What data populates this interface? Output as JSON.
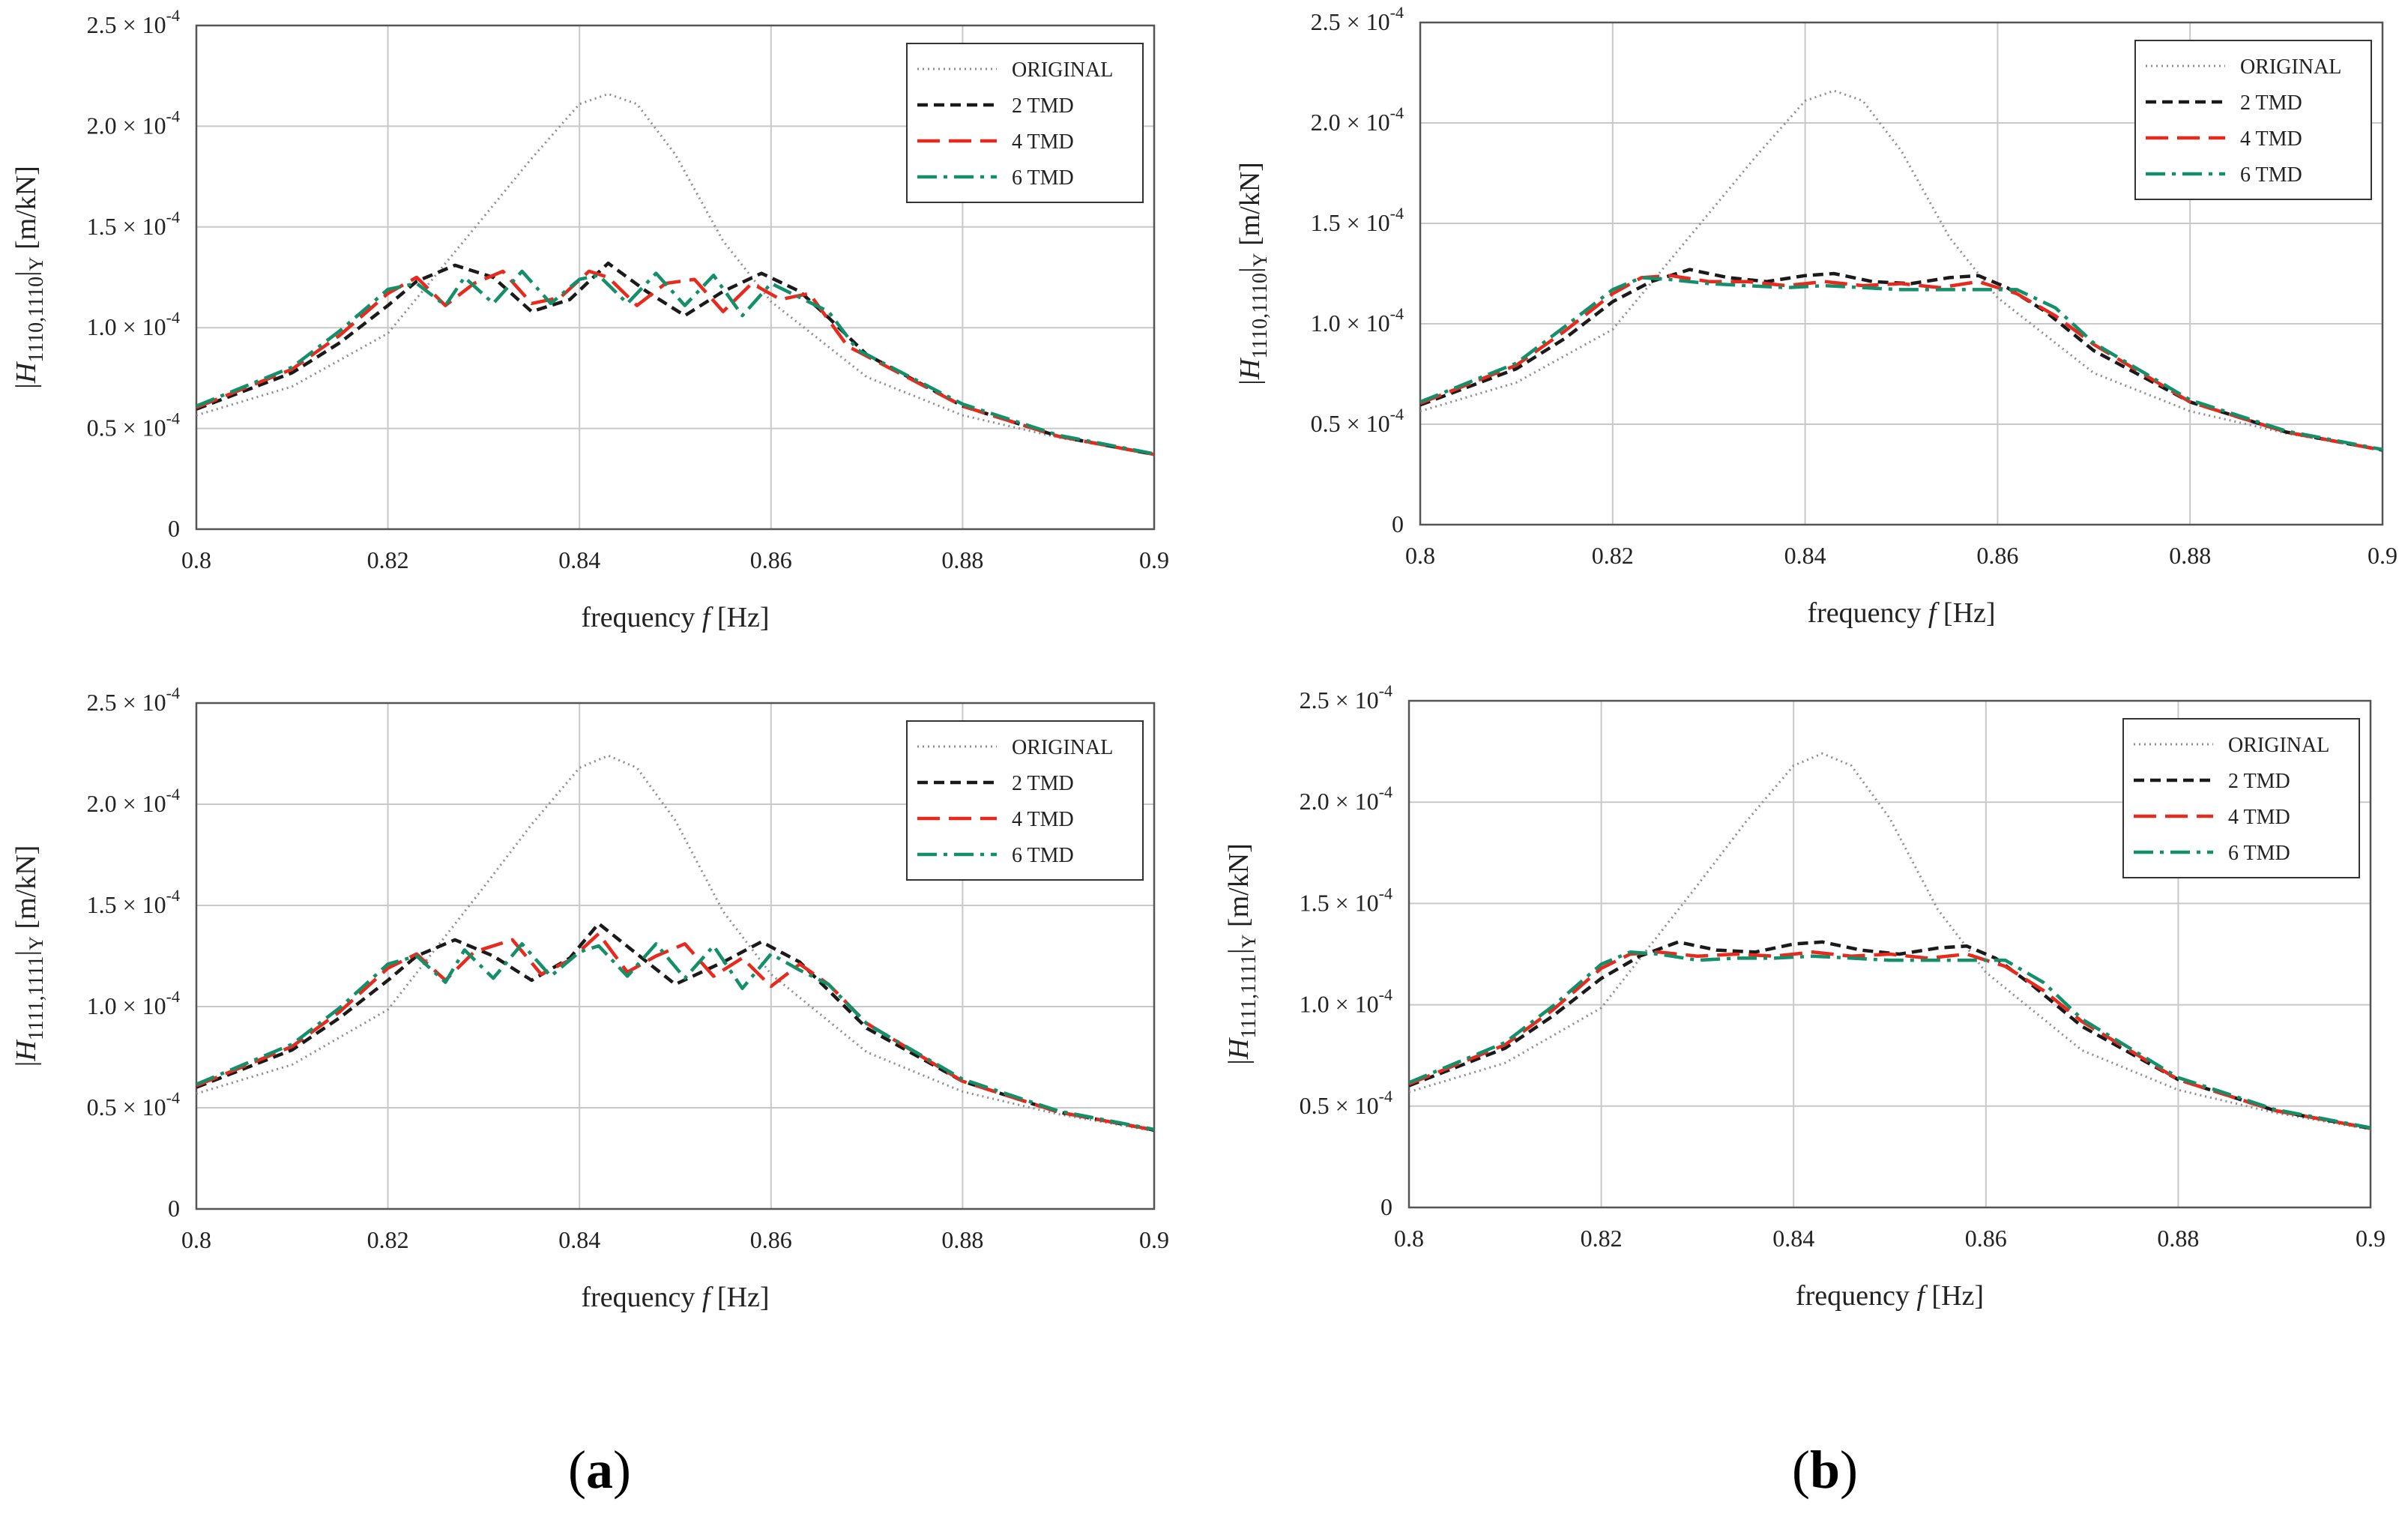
{
  "figure": {
    "label_a": "a",
    "label_b": "b"
  },
  "chart_data": [
    {
      "type": "line",
      "panel": "a-top",
      "xlabel": "frequency f [Hz]",
      "ylabel": "|H1110,1110|Y [m/kN]",
      "xlim": [
        0.8,
        0.9
      ],
      "ylim": [
        0,
        0.00025
      ],
      "x_ticks": [
        "0.8",
        "0.82",
        "0.84",
        "0.86",
        "0.88",
        "0.9"
      ],
      "y_ticks": [
        "0",
        "0.5 × 10-4",
        "1.0 × 10-4",
        "1.5 × 10-4",
        "2.0 × 10-4",
        "2.5 × 10-4"
      ],
      "grid": true,
      "legend": "top-right",
      "series": [
        {
          "name": "ORIGINAL",
          "color": "#8c8c8c",
          "style": "dotted",
          "x": [
            0.8,
            0.81,
            0.82,
            0.83,
            0.835,
            0.84,
            0.843,
            0.846,
            0.85,
            0.855,
            0.86,
            0.87,
            0.88,
            0.89,
            0.9
          ],
          "y": [
            5.65e-05,
            7.08e-05,
            9.72e-05,
            0.000155,
            0.000184,
            0.000211,
            0.000216,
            0.000211,
            0.000186,
            0.000143,
            0.000113,
            7.55e-05,
            5.65e-05,
            4.55e-05,
            3.7e-05
          ]
        },
        {
          "name": "2 TMD",
          "color": "#1a1a1a",
          "style": "dashed",
          "x": [
            0.8,
            0.81,
            0.815,
            0.82,
            0.823,
            0.827,
            0.831,
            0.835,
            0.839,
            0.843,
            0.847,
            0.851,
            0.855,
            0.859,
            0.863,
            0.866,
            0.87,
            0.88,
            0.89,
            0.9
          ],
          "y": [
            5.96e-05,
            7.76e-05,
            9.26e-05,
            0.000111,
            0.000123,
            0.000131,
            0.000125,
            0.000108,
            0.000114,
            0.000132,
            0.000118,
            0.000106,
            0.000118,
            0.000127,
            0.000118,
            0.000105,
            8.66e-05,
            6.11e-05,
            4.61e-05,
            3.71e-05
          ]
        },
        {
          "name": "4 TMD",
          "color": "#e82a1e",
          "style": "long-dashed",
          "x": [
            0.8,
            0.81,
            0.815,
            0.82,
            0.823,
            0.826,
            0.829,
            0.832,
            0.835,
            0.838,
            0.841,
            0.843,
            0.846,
            0.849,
            0.852,
            0.855,
            0.858,
            0.861,
            0.864,
            0.868,
            0.88,
            0.89,
            0.9
          ],
          "y": [
            6.04e-05,
            7.94e-05,
            9.63e-05,
            0.000117,
            0.000125,
            0.000111,
            0.000122,
            0.000128,
            0.000112,
            0.000115,
            0.000128,
            0.000125,
            0.000111,
            0.000122,
            0.000124,
            0.000108,
            0.000122,
            0.000114,
            0.000117,
            9.08e-05,
            6.11e-05,
            4.61e-05,
            3.71e-05
          ]
        },
        {
          "name": "6 TMD",
          "color": "#138f6a",
          "style": "dash-dot",
          "x": [
            0.8,
            0.81,
            0.815,
            0.82,
            0.823,
            0.826,
            0.828,
            0.831,
            0.834,
            0.837,
            0.84,
            0.842,
            0.845,
            0.848,
            0.851,
            0.854,
            0.857,
            0.86,
            0.863,
            0.866,
            0.869,
            0.88,
            0.89,
            0.9
          ],
          "y": [
            6.11e-05,
            8.04e-05,
            9.85e-05,
            0.000119,
            0.000122,
            0.000111,
            0.000125,
            0.000112,
            0.000128,
            0.000112,
            0.000124,
            0.000126,
            0.000112,
            0.000127,
            0.000111,
            0.000126,
            0.000106,
            0.000122,
            0.000115,
            0.000108,
            8.91e-05,
            6.21e-05,
            4.66e-05,
            3.74e-05
          ]
        }
      ]
    },
    {
      "type": "line",
      "panel": "b-top",
      "xlabel": "frequency f [Hz]",
      "ylabel": "|H1110,1110|Y [m/kN]",
      "xlim": [
        0.8,
        0.9
      ],
      "ylim": [
        0,
        0.00025
      ],
      "x_ticks": [
        "0.8",
        "0.82",
        "0.84",
        "0.86",
        "0.88",
        "0.9"
      ],
      "y_ticks": [
        "0",
        "0.5 × 10-4",
        "1.0 × 10-4",
        "1.5 × 10-4",
        "2.0 × 10-4",
        "2.5 × 10-4"
      ],
      "grid": true,
      "legend": "top-right",
      "series": [
        {
          "name": "ORIGINAL",
          "color": "#8c8c8c",
          "style": "dotted",
          "x": [
            0.8,
            0.81,
            0.82,
            0.83,
            0.835,
            0.84,
            0.843,
            0.846,
            0.85,
            0.855,
            0.86,
            0.87,
            0.88,
            0.89,
            0.9
          ],
          "y": [
            5.65e-05,
            7.08e-05,
            9.72e-05,
            0.000155,
            0.000184,
            0.000211,
            0.000216,
            0.000211,
            0.000186,
            0.000143,
            0.000113,
            7.55e-05,
            5.65e-05,
            4.55e-05,
            3.7e-05
          ]
        },
        {
          "name": "2 TMD",
          "color": "#1a1a1a",
          "style": "dashed",
          "x": [
            0.8,
            0.81,
            0.815,
            0.82,
            0.824,
            0.828,
            0.832,
            0.836,
            0.84,
            0.843,
            0.847,
            0.851,
            0.855,
            0.858,
            0.861,
            0.865,
            0.87,
            0.88,
            0.89,
            0.9
          ],
          "y": [
            5.96e-05,
            7.76e-05,
            9.26e-05,
            0.000111,
            0.000121,
            0.000127,
            0.000123,
            0.000121,
            0.000124,
            0.000125,
            0.000121,
            0.00012,
            0.000123,
            0.000124,
            0.000118,
            0.000106,
            8.66e-05,
            6.11e-05,
            4.61e-05,
            3.71e-05
          ]
        },
        {
          "name": "4 TMD",
          "color": "#e82a1e",
          "style": "long-dashed",
          "x": [
            0.8,
            0.81,
            0.815,
            0.82,
            0.823,
            0.826,
            0.83,
            0.834,
            0.838,
            0.842,
            0.846,
            0.85,
            0.854,
            0.858,
            0.862,
            0.866,
            0.87,
            0.88,
            0.89,
            0.9
          ],
          "y": [
            6.04e-05,
            7.94e-05,
            9.63e-05,
            0.000115,
            0.000123,
            0.000124,
            0.000121,
            0.000121,
            0.000119,
            0.000121,
            0.000119,
            0.00012,
            0.000118,
            0.000121,
            0.000115,
            0.000104,
            8.97e-05,
            6.11e-05,
            4.61e-05,
            3.71e-05
          ]
        },
        {
          "name": "6 TMD",
          "color": "#138f6a",
          "style": "dash-dot",
          "x": [
            0.8,
            0.81,
            0.815,
            0.82,
            0.823,
            0.826,
            0.83,
            0.834,
            0.838,
            0.842,
            0.846,
            0.85,
            0.854,
            0.858,
            0.862,
            0.866,
            0.87,
            0.88,
            0.89,
            0.9
          ],
          "y": [
            6.11e-05,
            8.04e-05,
            9.85e-05,
            0.000117,
            0.000123,
            0.000122,
            0.00012,
            0.000119,
            0.000118,
            0.000119,
            0.000118,
            0.000117,
            0.000117,
            0.000117,
            0.000117,
            0.000108,
            9.04e-05,
            6.21e-05,
            4.66e-05,
            3.74e-05
          ]
        }
      ]
    },
    {
      "type": "line",
      "panel": "a-bottom",
      "xlabel": "frequency f [Hz]",
      "ylabel": "|H1111,1111|Y [m/kN]",
      "xlim": [
        0.8,
        0.9
      ],
      "ylim": [
        0,
        0.00025
      ],
      "x_ticks": [
        "0.8",
        "0.82",
        "0.84",
        "0.86",
        "0.88",
        "0.9"
      ],
      "y_ticks": [
        "0",
        "0.5 × 10-4",
        "1.0 × 10-4",
        "1.5 × 10-4",
        "2.0 × 10-4",
        "2.5 × 10-4"
      ],
      "grid": true,
      "legend": "top-right",
      "series": [
        {
          "name": "ORIGINAL",
          "color": "#8c8c8c",
          "style": "dotted",
          "x": [
            0.8,
            0.81,
            0.82,
            0.83,
            0.835,
            0.84,
            0.843,
            0.846,
            0.85,
            0.855,
            0.86,
            0.87,
            0.88,
            0.89,
            0.9
          ],
          "y": [
            5.7e-05,
            7.13e-05,
            9.85e-05,
            0.000159,
            0.00019,
            0.000218,
            0.000224,
            0.000218,
            0.000192,
            0.000147,
            0.000116,
            7.75e-05,
            5.8e-05,
            4.68e-05,
            3.85e-05
          ]
        },
        {
          "name": "2 TMD",
          "color": "#1a1a1a",
          "style": "dashed",
          "x": [
            0.8,
            0.81,
            0.815,
            0.82,
            0.823,
            0.827,
            0.831,
            0.835,
            0.839,
            0.842,
            0.846,
            0.85,
            0.855,
            0.859,
            0.863,
            0.866,
            0.87,
            0.88,
            0.89,
            0.9
          ],
          "y": [
            6.01e-05,
            7.86e-05,
            9.46e-05,
            0.000113,
            0.000125,
            0.000133,
            0.000125,
            0.000113,
            0.000124,
            0.000141,
            0.000126,
            0.000111,
            0.000122,
            0.000132,
            0.000122,
            0.000108,
            8.93e-05,
            6.31e-05,
            4.79e-05,
            3.9e-05
          ]
        },
        {
          "name": "4 TMD",
          "color": "#e82a1e",
          "style": "long-dashed",
          "x": [
            0.8,
            0.81,
            0.815,
            0.82,
            0.823,
            0.826,
            0.829,
            0.833,
            0.836,
            0.839,
            0.842,
            0.845,
            0.848,
            0.851,
            0.854,
            0.857,
            0.86,
            0.863,
            0.866,
            0.87,
            0.88,
            0.89,
            0.9
          ],
          "y": [
            6.09e-05,
            8.03e-05,
            9.76e-05,
            0.000119,
            0.000126,
            0.000113,
            0.000127,
            0.000133,
            0.000116,
            0.000123,
            0.000136,
            0.000117,
            0.000125,
            0.000131,
            0.000115,
            0.000124,
            0.00011,
            0.000121,
            0.000111,
            9.17e-05,
            6.31e-05,
            4.79e-05,
            3.9e-05
          ]
        },
        {
          "name": "6 TMD",
          "color": "#138f6a",
          "style": "dash-dot",
          "x": [
            0.8,
            0.81,
            0.815,
            0.82,
            0.823,
            0.826,
            0.828,
            0.831,
            0.834,
            0.837,
            0.84,
            0.842,
            0.845,
            0.848,
            0.851,
            0.854,
            0.857,
            0.86,
            0.863,
            0.866,
            0.87,
            0.88,
            0.89,
            0.9
          ],
          "y": [
            6.16e-05,
            8.14e-05,
            9.95e-05,
            0.000121,
            0.000125,
            0.000112,
            0.000128,
            0.000114,
            0.000131,
            0.000115,
            0.000127,
            0.00013,
            0.000115,
            0.000131,
            0.000114,
            0.00013,
            0.000109,
            0.000126,
            0.000118,
            0.000111,
            9.15e-05,
            6.41e-05,
            4.84e-05,
            3.93e-05
          ]
        }
      ]
    },
    {
      "type": "line",
      "panel": "b-bottom",
      "xlabel": "frequency f [Hz]",
      "ylabel": "|H1111,1111|Y [m/kN]",
      "xlim": [
        0.8,
        0.9
      ],
      "ylim": [
        0,
        0.00025
      ],
      "x_ticks": [
        "0.8",
        "0.82",
        "0.84",
        "0.86",
        "0.88",
        "0.9"
      ],
      "y_ticks": [
        "0",
        "0.5 × 10-4",
        "1.0 × 10-4",
        "1.5 × 10-4",
        "2.0 × 10-4",
        "2.5 × 10-4"
      ],
      "grid": true,
      "legend": "top-right",
      "series": [
        {
          "name": "ORIGINAL",
          "color": "#8c8c8c",
          "style": "dotted",
          "x": [
            0.8,
            0.81,
            0.82,
            0.83,
            0.835,
            0.84,
            0.843,
            0.846,
            0.85,
            0.855,
            0.86,
            0.87,
            0.88,
            0.89,
            0.9
          ],
          "y": [
            5.7e-05,
            7.13e-05,
            9.85e-05,
            0.000159,
            0.00019,
            0.000218,
            0.000224,
            0.000218,
            0.000192,
            0.000147,
            0.000116,
            7.75e-05,
            5.8e-05,
            4.68e-05,
            3.85e-05
          ]
        },
        {
          "name": "2 TMD",
          "color": "#1a1a1a",
          "style": "dashed",
          "x": [
            0.8,
            0.81,
            0.815,
            0.82,
            0.824,
            0.828,
            0.832,
            0.836,
            0.84,
            0.843,
            0.847,
            0.851,
            0.855,
            0.858,
            0.861,
            0.865,
            0.87,
            0.88,
            0.89,
            0.9
          ],
          "y": [
            6.01e-05,
            7.86e-05,
            9.46e-05,
            0.000113,
            0.000124,
            0.000131,
            0.000127,
            0.000126,
            0.00013,
            0.000131,
            0.000127,
            0.000125,
            0.000128,
            0.000129,
            0.000123,
            0.000109,
            8.93e-05,
            6.31e-05,
            4.79e-05,
            3.9e-05
          ]
        },
        {
          "name": "4 TMD",
          "color": "#e82a1e",
          "style": "long-dashed",
          "x": [
            0.8,
            0.81,
            0.815,
            0.82,
            0.823,
            0.826,
            0.83,
            0.834,
            0.838,
            0.842,
            0.846,
            0.85,
            0.854,
            0.858,
            0.862,
            0.866,
            0.87,
            0.88,
            0.89,
            0.9
          ],
          "y": [
            6.09e-05,
            8.03e-05,
            9.76e-05,
            0.000118,
            0.000125,
            0.000126,
            0.000124,
            0.000125,
            0.000124,
            0.000126,
            0.000124,
            0.000125,
            0.000123,
            0.000125,
            0.000119,
            0.000107,
            9.17e-05,
            6.31e-05,
            4.79e-05,
            3.9e-05
          ]
        },
        {
          "name": "6 TMD",
          "color": "#138f6a",
          "style": "dash-dot",
          "x": [
            0.8,
            0.81,
            0.815,
            0.82,
            0.823,
            0.826,
            0.83,
            0.834,
            0.838,
            0.842,
            0.846,
            0.85,
            0.854,
            0.858,
            0.862,
            0.866,
            0.87,
            0.88,
            0.89,
            0.9
          ],
          "y": [
            6.16e-05,
            8.14e-05,
            9.95e-05,
            0.00012,
            0.000126,
            0.000125,
            0.000122,
            0.000123,
            0.000123,
            0.000124,
            0.000123,
            0.000122,
            0.000122,
            0.000122,
            0.000122,
            0.000111,
            9.29e-05,
            6.41e-05,
            4.84e-05,
            3.93e-05
          ]
        }
      ]
    }
  ]
}
